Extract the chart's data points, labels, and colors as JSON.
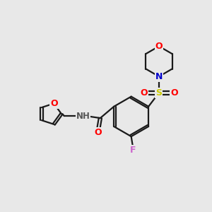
{
  "bg_color": "#e8e8e8",
  "bond_color": "#1a1a1a",
  "atom_colors": {
    "O": "#ff0000",
    "N": "#0000cc",
    "S": "#cccc00",
    "F": "#cc66cc",
    "H": "#555555",
    "C": "#1a1a1a"
  },
  "figsize": [
    3.0,
    3.0
  ],
  "dpi": 100
}
